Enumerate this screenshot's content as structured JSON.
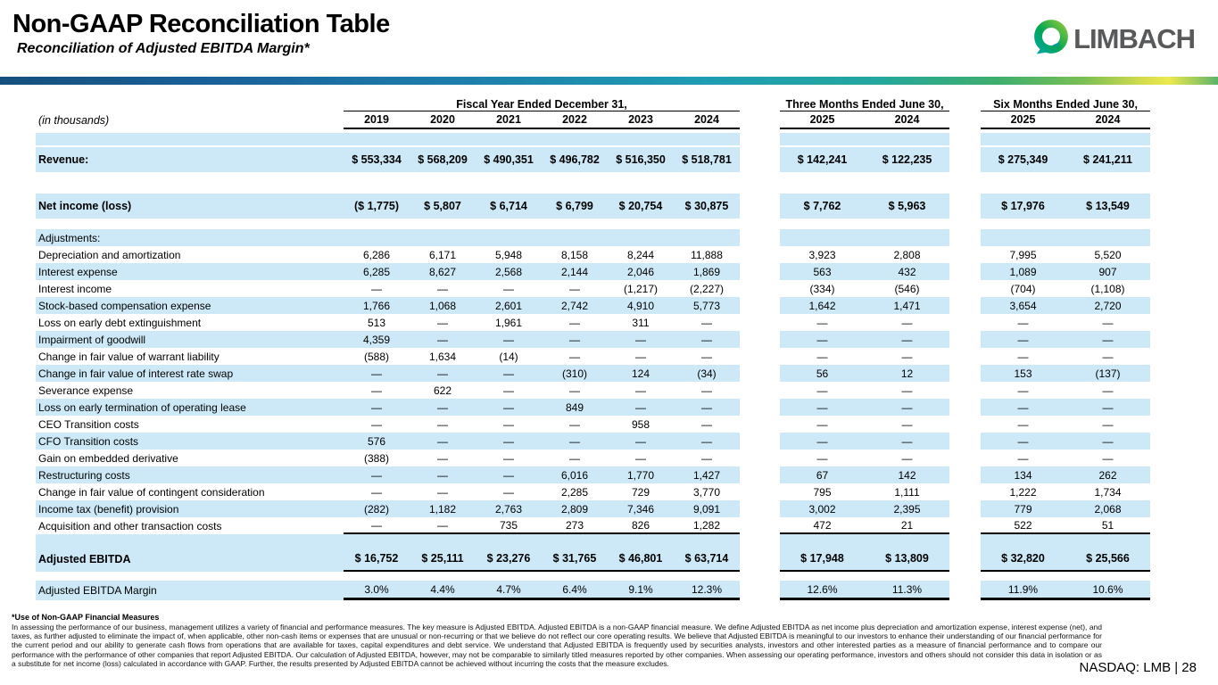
{
  "header": {
    "title": "Non-GAAP Reconciliation Table",
    "subtitle": "Reconciliation of Adjusted EBITDA Margin*",
    "logo_text": "LIMBACH"
  },
  "colors": {
    "row_highlight": "#cde9f8",
    "bar_gradient_start": "#15507d",
    "bar_gradient_teal": "#1f9db3",
    "bar_gradient_yellow": "#ece94e",
    "bar_gradient_end": "#5bb469",
    "logo_text": "#58595b",
    "logo_green": "#a6ce39",
    "logo_teal": "#00a7b5"
  },
  "table": {
    "units_note": "(in thousands)",
    "groups": [
      {
        "label": "Fiscal Year Ended December 31,",
        "years": [
          "2019",
          "2020",
          "2021",
          "2022",
          "2023",
          "2024"
        ]
      },
      {
        "label": "Three Months Ended June 30,",
        "years": [
          "2025",
          "2024"
        ]
      },
      {
        "label": "Six Months Ended June 30,",
        "years": [
          "2025",
          "2024"
        ]
      }
    ],
    "rows": [
      {
        "kind": "gap",
        "h": 4
      },
      {
        "kind": "spacer",
        "shaded": true
      },
      {
        "kind": "gap",
        "h": 2
      },
      {
        "label": "Revenue:",
        "bold": true,
        "tall": true,
        "shaded": true,
        "values": [
          "$ 553,334",
          "$ 568,209",
          "$ 490,351",
          "$ 496,782",
          "$ 516,350",
          "$ 518,781",
          "$ 142,241",
          "$ 122,235",
          "$ 275,349",
          "$ 241,211"
        ]
      },
      {
        "kind": "gap",
        "h": 24
      },
      {
        "label": "Net income (loss)",
        "bold": true,
        "tall": true,
        "shaded": true,
        "values": [
          "($ 1,775)",
          "$ 5,807",
          "$ 6,714",
          "$ 6,799",
          "$ 20,754",
          "$ 30,875",
          "$ 7,762",
          "$ 5,963",
          "$ 17,976",
          "$ 13,549"
        ]
      },
      {
        "kind": "gap",
        "h": 12
      },
      {
        "label": "Adjustments:",
        "shaded": true,
        "values": [
          "",
          "",
          "",
          "",
          "",
          "",
          "",
          "",
          "",
          ""
        ]
      },
      {
        "label": "Depreciation and amortization",
        "shaded": false,
        "values": [
          "6,286",
          "6,171",
          "5,948",
          "8,158",
          "8,244",
          "11,888",
          "3,923",
          "2,808",
          "7,995",
          "5,520"
        ]
      },
      {
        "label": "Interest expense",
        "shaded": true,
        "values": [
          "6,285",
          "8,627",
          "2,568",
          "2,144",
          "2,046",
          "1,869",
          "563",
          "432",
          "1,089",
          "907"
        ]
      },
      {
        "label": "Interest income",
        "shaded": false,
        "values": [
          "—",
          "—",
          "—",
          "—",
          "(1,217)",
          "(2,227)",
          "(334)",
          "(546)",
          "(704)",
          "(1,108)"
        ]
      },
      {
        "label": "Stock-based compensation expense",
        "shaded": true,
        "values": [
          "1,766",
          "1,068",
          "2,601",
          "2,742",
          "4,910",
          "5,773",
          "1,642",
          "1,471",
          "3,654",
          "2,720"
        ]
      },
      {
        "label": "Loss on early debt extinguishment",
        "shaded": false,
        "values": [
          "513",
          "—",
          "1,961",
          "—",
          "311",
          "—",
          "—",
          "—",
          "—",
          "—"
        ]
      },
      {
        "label": "Impairment of goodwill",
        "shaded": true,
        "values": [
          "4,359",
          "—",
          "—",
          "—",
          "—",
          "—",
          "—",
          "—",
          "—",
          "—"
        ]
      },
      {
        "label": "Change in fair value of warrant liability",
        "shaded": false,
        "values": [
          "(588)",
          "1,634",
          "(14)",
          "—",
          "—",
          "—",
          "—",
          "—",
          "—",
          "—"
        ]
      },
      {
        "label": "Change in fair value of interest rate swap",
        "shaded": true,
        "values": [
          "—",
          "—",
          "—",
          "(310)",
          "124",
          "(34)",
          "56",
          "12",
          "153",
          "(137)"
        ]
      },
      {
        "label": "Severance expense",
        "shaded": false,
        "values": [
          "—",
          "622",
          "—",
          "—",
          "—",
          "—",
          "—",
          "—",
          "—",
          "—"
        ]
      },
      {
        "label": "Loss on early termination of operating lease",
        "shaded": true,
        "values": [
          "—",
          "—",
          "—",
          "849",
          "—",
          "—",
          "—",
          "—",
          "—",
          "—"
        ]
      },
      {
        "label": "CEO Transition costs",
        "shaded": false,
        "values": [
          "—",
          "—",
          "—",
          "—",
          "958",
          "—",
          "—",
          "—",
          "—",
          "—"
        ]
      },
      {
        "label": "CFO Transition costs",
        "shaded": true,
        "values": [
          "576",
          "—",
          "—",
          "—",
          "—",
          "—",
          "—",
          "—",
          "—",
          "—"
        ]
      },
      {
        "label": "Gain on embedded derivative",
        "shaded": false,
        "values": [
          "(388)",
          "—",
          "—",
          "—",
          "—",
          "—",
          "—",
          "—",
          "—",
          "—"
        ]
      },
      {
        "label": "Restructuring costs",
        "shaded": true,
        "values": [
          "—",
          "—",
          "—",
          "6,016",
          "1,770",
          "1,427",
          "67",
          "142",
          "134",
          "262"
        ]
      },
      {
        "label": "Change in fair value of contingent consideration",
        "shaded": false,
        "values": [
          "—",
          "—",
          "—",
          "2,285",
          "729",
          "3,770",
          "795",
          "1,111",
          "1,222",
          "1,734"
        ]
      },
      {
        "label": "Income tax (benefit) provision",
        "shaded": true,
        "values": [
          "(282)",
          "1,182",
          "2,763",
          "2,809",
          "7,346",
          "9,091",
          "3,002",
          "2,395",
          "779",
          "2,068"
        ]
      },
      {
        "label": "Acquisition and other transaction costs",
        "shaded": false,
        "underline": "thin",
        "values": [
          "—",
          "—",
          "735",
          "273",
          "826",
          "1,282",
          "472",
          "21",
          "522",
          "51"
        ]
      },
      {
        "kind": "spacer",
        "shaded": true
      },
      {
        "label": "Adjusted EBITDA",
        "bold": true,
        "tall": true,
        "shaded": true,
        "underline": "thin",
        "values": [
          "$ 16,752",
          "$ 25,111",
          "$ 23,276",
          "$ 31,765",
          "$ 46,801",
          "$ 63,714",
          "$ 17,948",
          "$ 13,809",
          "$ 32,820",
          "$ 25,566"
        ]
      },
      {
        "kind": "gap",
        "h": 10
      },
      {
        "label": "Adjusted EBITDA Margin",
        "mid": true,
        "shaded": true,
        "underline": "thick",
        "values": [
          "3.0%",
          "4.4%",
          "4.7%",
          "6.4%",
          "9.1%",
          "12.3%",
          "12.6%",
          "11.3%",
          "11.9%",
          "10.6%"
        ]
      }
    ]
  },
  "footnote": {
    "heading": "*Use of Non-GAAP Financial Measures",
    "body": "In assessing the performance of our business, management utilizes a variety of financial and performance measures. The key measure is Adjusted EBITDA. Adjusted EBITDA is a non-GAAP financial measure. We define Adjusted EBITDA as net income plus depreciation and amortization expense, interest expense (net), and taxes, as further adjusted to eliminate the impact of, when applicable, other non-cash items or expenses that are unusual or non-recurring or that we believe do not reflect our core operating results. We believe that Adjusted EBITDA is meaningful to our investors to enhance their understanding of our financial performance for the current period and our ability to generate cash flows from operations that are available for taxes, capital expenditures and debt service. We understand that Adjusted EBITDA is frequently used by securities analysts, investors and other interested parties as a measure of financial performance and to compare our performance with the performance of other companies that report Adjusted EBITDA. Our calculation of Adjusted EBITDA, however, may not be comparable to similarly titled measures reported by other companies. When assessing our operating performance, investors and others should not consider this data in isolation or as a substitute for net income (loss) calculated in accordance with GAAP. Further, the results presented by Adjusted EBITDA cannot be achieved without incurring the costs that the measure excludes."
  },
  "footer": {
    "ticker": "NASDAQ: LMB | 28"
  }
}
